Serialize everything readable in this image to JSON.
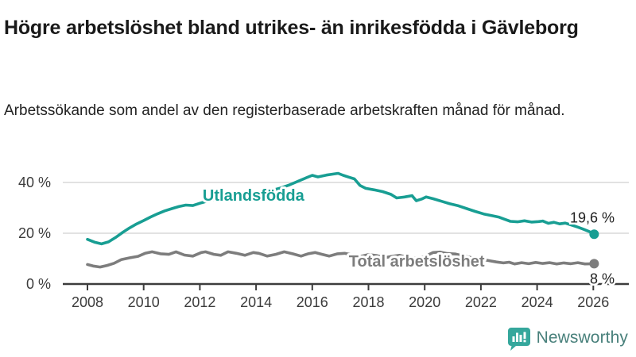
{
  "title": "Högre arbetslöshet bland utrikes- än inrikesfödda i Gävleborg",
  "subtitle": "Arbetssökande som andel av den registerbaserade arbetskraften månad för månad.",
  "branding": {
    "logo_text": "Newsworthy",
    "icon": "newsworthy-barchart-bubble-icon",
    "icon_color": "#35a79c",
    "text_color": "#48807b"
  },
  "colors": {
    "accent_teal": "#189e93",
    "series_gray": "#7d7d7d",
    "grid": "#d8d8d8",
    "axis": "#3c3c3c",
    "tick_text": "#3b3b3b",
    "value_text": "#222222",
    "background": "#ffffff"
  },
  "chart_data": {
    "type": "line",
    "unit": "%",
    "grid": "horizontal",
    "xlim": [
      2007.85,
      2027.3
    ],
    "ylim": [
      0,
      48
    ],
    "x_ticks": [
      "2008",
      "2010",
      "2012",
      "2014",
      "2016",
      "2018",
      "2020",
      "2022",
      "2024",
      "2026"
    ],
    "x_tick_years": [
      2008,
      2010,
      2012,
      2014,
      2016,
      2018,
      2020,
      2022,
      2024,
      2026
    ],
    "y_ticks": [
      {
        "label": "0 %",
        "value": 0
      },
      {
        "label": "20 %",
        "value": 20
      },
      {
        "label": "40 %",
        "value": 40
      }
    ],
    "series": [
      {
        "name": "Utlandsfödda",
        "color": "#189e93",
        "end_label": "19,6 %",
        "end_value": 19.6,
        "label_anchor": {
          "year": 2012.1,
          "value": 35.0
        },
        "points": [
          [
            2008.0,
            17.6
          ],
          [
            2008.25,
            16.5
          ],
          [
            2008.5,
            15.8
          ],
          [
            2008.75,
            16.6
          ],
          [
            2009.0,
            18.3
          ],
          [
            2009.25,
            20.3
          ],
          [
            2009.5,
            22.1
          ],
          [
            2009.75,
            23.7
          ],
          [
            2010.0,
            25.0
          ],
          [
            2010.25,
            26.4
          ],
          [
            2010.5,
            27.7
          ],
          [
            2010.75,
            28.8
          ],
          [
            2011.0,
            29.7
          ],
          [
            2011.25,
            30.5
          ],
          [
            2011.5,
            31.1
          ],
          [
            2011.75,
            30.9
          ],
          [
            2012.0,
            31.8
          ],
          [
            2012.25,
            32.6
          ],
          [
            2012.5,
            33.2
          ],
          [
            2012.75,
            32.9
          ],
          [
            2013.0,
            34.0
          ],
          [
            2013.2,
            34.7
          ],
          [
            2013.4,
            34.3
          ],
          [
            2013.7,
            35.0
          ],
          [
            2014.0,
            35.7
          ],
          [
            2014.3,
            36.3
          ],
          [
            2014.6,
            37.0
          ],
          [
            2014.9,
            37.9
          ],
          [
            2015.2,
            39.1
          ],
          [
            2015.5,
            40.5
          ],
          [
            2015.8,
            41.9
          ],
          [
            2016.0,
            42.8
          ],
          [
            2016.2,
            42.2
          ],
          [
            2016.5,
            42.9
          ],
          [
            2016.75,
            43.3
          ],
          [
            2016.92,
            43.6
          ],
          [
            2017.1,
            42.8
          ],
          [
            2017.3,
            42.1
          ],
          [
            2017.5,
            41.4
          ],
          [
            2017.7,
            38.8
          ],
          [
            2017.9,
            37.7
          ],
          [
            2018.2,
            37.1
          ],
          [
            2018.5,
            36.4
          ],
          [
            2018.8,
            35.3
          ],
          [
            2019.0,
            33.9
          ],
          [
            2019.3,
            34.3
          ],
          [
            2019.55,
            34.8
          ],
          [
            2019.7,
            32.8
          ],
          [
            2019.9,
            33.5
          ],
          [
            2020.05,
            34.3
          ],
          [
            2020.3,
            33.6
          ],
          [
            2020.6,
            32.6
          ],
          [
            2020.9,
            31.6
          ],
          [
            2021.2,
            30.8
          ],
          [
            2021.5,
            29.7
          ],
          [
            2021.8,
            28.6
          ],
          [
            2022.1,
            27.6
          ],
          [
            2022.4,
            26.9
          ],
          [
            2022.65,
            26.3
          ],
          [
            2022.85,
            25.5
          ],
          [
            2023.05,
            24.7
          ],
          [
            2023.3,
            24.5
          ],
          [
            2023.55,
            24.9
          ],
          [
            2023.8,
            24.4
          ],
          [
            2024.05,
            24.6
          ],
          [
            2024.2,
            24.8
          ],
          [
            2024.4,
            23.9
          ],
          [
            2024.6,
            24.3
          ],
          [
            2024.8,
            23.7
          ],
          [
            2025.0,
            24.0
          ],
          [
            2025.2,
            23.3
          ],
          [
            2025.45,
            22.4
          ],
          [
            2025.65,
            21.6
          ],
          [
            2025.85,
            20.7
          ],
          [
            2026.03,
            19.6
          ]
        ]
      },
      {
        "name": "Total arbetslöshet",
        "color": "#7d7d7d",
        "end_label": "8 %",
        "end_value": 8.0,
        "label_anchor": {
          "year": 2017.3,
          "value": 9.0
        },
        "points": [
          [
            2008.0,
            7.7
          ],
          [
            2008.2,
            7.1
          ],
          [
            2008.45,
            6.7
          ],
          [
            2008.7,
            7.3
          ],
          [
            2008.95,
            8.2
          ],
          [
            2009.2,
            9.6
          ],
          [
            2009.5,
            10.3
          ],
          [
            2009.8,
            10.9
          ],
          [
            2010.05,
            12.1
          ],
          [
            2010.3,
            12.7
          ],
          [
            2010.6,
            11.9
          ],
          [
            2010.9,
            11.7
          ],
          [
            2011.15,
            12.7
          ],
          [
            2011.45,
            11.4
          ],
          [
            2011.75,
            11.0
          ],
          [
            2012.05,
            12.4
          ],
          [
            2012.2,
            12.7
          ],
          [
            2012.5,
            11.7
          ],
          [
            2012.75,
            11.3
          ],
          [
            2013.0,
            12.7
          ],
          [
            2013.3,
            12.1
          ],
          [
            2013.6,
            11.3
          ],
          [
            2013.9,
            12.4
          ],
          [
            2014.1,
            12.1
          ],
          [
            2014.4,
            11.0
          ],
          [
            2014.7,
            11.7
          ],
          [
            2015.0,
            12.7
          ],
          [
            2015.3,
            11.9
          ],
          [
            2015.6,
            11.0
          ],
          [
            2015.85,
            11.9
          ],
          [
            2016.1,
            12.4
          ],
          [
            2016.35,
            11.7
          ],
          [
            2016.6,
            11.0
          ],
          [
            2016.9,
            11.9
          ],
          [
            2017.15,
            12.1
          ],
          [
            2017.45,
            11.4
          ],
          [
            2017.7,
            10.8
          ],
          [
            2018.0,
            11.6
          ],
          [
            2018.3,
            11.2
          ],
          [
            2018.6,
            10.4
          ],
          [
            2018.9,
            11.0
          ],
          [
            2019.1,
            11.3
          ],
          [
            2019.4,
            10.5
          ],
          [
            2019.7,
            10.1
          ],
          [
            2020.0,
            10.8
          ],
          [
            2020.3,
            12.4
          ],
          [
            2020.55,
            12.6
          ],
          [
            2020.8,
            12.0
          ],
          [
            2021.1,
            11.8
          ],
          [
            2021.4,
            11.0
          ],
          [
            2021.7,
            10.3
          ],
          [
            2022.0,
            9.8
          ],
          [
            2022.3,
            9.2
          ],
          [
            2022.55,
            8.7
          ],
          [
            2022.8,
            8.3
          ],
          [
            2023.0,
            8.6
          ],
          [
            2023.2,
            7.9
          ],
          [
            2023.45,
            8.4
          ],
          [
            2023.7,
            8.0
          ],
          [
            2023.95,
            8.5
          ],
          [
            2024.2,
            8.1
          ],
          [
            2024.45,
            8.4
          ],
          [
            2024.7,
            7.9
          ],
          [
            2024.95,
            8.3
          ],
          [
            2025.2,
            8.0
          ],
          [
            2025.45,
            8.4
          ],
          [
            2025.7,
            7.9
          ],
          [
            2026.03,
            8.0
          ]
        ]
      }
    ]
  }
}
